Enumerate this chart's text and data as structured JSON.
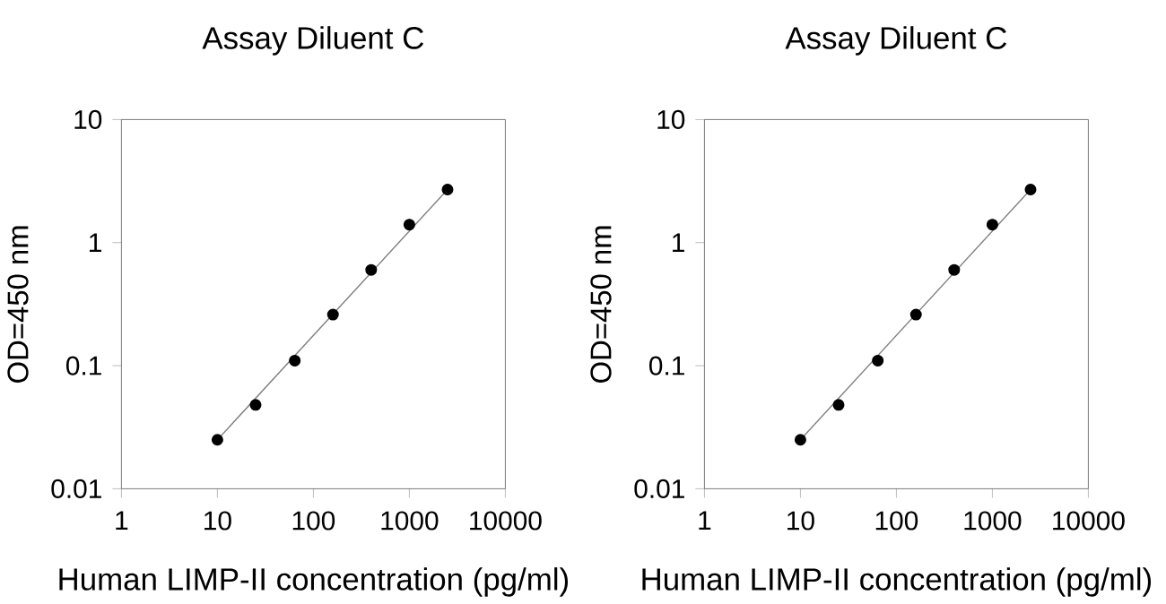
{
  "chart_data": [
    {
      "type": "scatter",
      "title": "Assay Diluent C",
      "xlabel": "Human LIMP-II concentration (pg/ml)",
      "ylabel": "OD=450 nm",
      "log": "xy",
      "xlim": [
        1,
        10000
      ],
      "ylim": [
        0.01,
        10
      ],
      "xticks": [
        1,
        10,
        100,
        1000,
        10000
      ],
      "yticks": [
        0.01,
        0.1,
        1,
        10
      ],
      "marker": "circle",
      "series": [
        {
          "color": "#000000",
          "x": [
            10,
            25,
            64,
            160,
            400,
            1000,
            2500
          ],
          "values": [
            0.025,
            0.048,
            0.11,
            0.26,
            0.6,
            1.4,
            2.7
          ]
        },
        {
          "type": "line",
          "color": "#808080",
          "marker": "none",
          "x": [
            10,
            2500
          ],
          "values": [
            0.025,
            2.7
          ]
        }
      ]
    },
    {
      "type": "scatter",
      "title": "Assay Diluent C",
      "xlabel": "Human LIMP-II concentration (pg/ml)",
      "ylabel": "OD=450 nm",
      "log": "xy",
      "xlim": [
        1,
        10000
      ],
      "ylim": [
        0.01,
        10
      ],
      "xticks": [
        1,
        10,
        100,
        1000,
        10000
      ],
      "yticks": [
        0.01,
        0.1,
        1,
        10
      ],
      "marker": "circle",
      "series": [
        {
          "color": "#000000",
          "x": [
            10,
            25,
            64,
            160,
            400,
            1000,
            2500
          ],
          "values": [
            0.025,
            0.048,
            0.11,
            0.26,
            0.6,
            1.4,
            2.7
          ]
        },
        {
          "type": "line",
          "color": "#808080",
          "marker": "none",
          "x": [
            10,
            2500
          ],
          "values": [
            0.025,
            2.7
          ]
        }
      ]
    }
  ]
}
